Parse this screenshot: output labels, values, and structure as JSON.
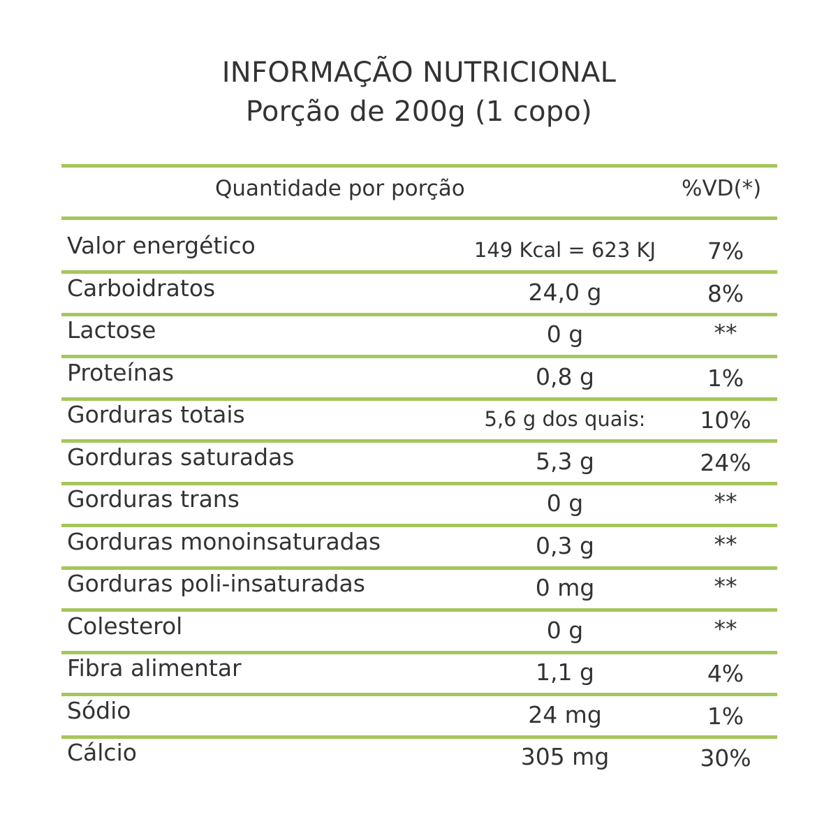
{
  "title": {
    "line1": "INFORMAÇÃO NUTRICIONAL",
    "line2": "Porção de 200g (1 copo)"
  },
  "header": {
    "quantity_label": "Quantidade por porção",
    "vd_label": "%VD(*)"
  },
  "colors": {
    "rule": "#a5c65a",
    "text": "#333333"
  },
  "rows": [
    {
      "name": "Valor energético",
      "amount": "149 Kcal = 623 KJ",
      "vd": "7%"
    },
    {
      "name": "Carboidratos",
      "amount": "24,0 g",
      "vd": "8%"
    },
    {
      "name": "Lactose",
      "amount": "0 g",
      "vd": "**"
    },
    {
      "name": "Proteínas",
      "amount": "0,8 g",
      "vd": "1%"
    },
    {
      "name": "Gorduras totais",
      "amount": "5,6 g dos quais:",
      "vd": "10%"
    },
    {
      "name": "Gorduras saturadas",
      "amount": "5,3 g",
      "vd": "24%"
    },
    {
      "name": "Gorduras trans",
      "amount": "0 g",
      "vd": "**"
    },
    {
      "name": "Gorduras monoinsaturadas",
      "amount": "0,3 g",
      "vd": "**"
    },
    {
      "name": "Gorduras poli-insaturadas",
      "amount": "0 mg",
      "vd": "**"
    },
    {
      "name": "Colesterol",
      "amount": "0 g",
      "vd": "**"
    },
    {
      "name": "Fibra alimentar",
      "amount": "1,1 g",
      "vd": "4%"
    },
    {
      "name": "Sódio",
      "amount": "24 mg",
      "vd": "1%"
    },
    {
      "name": "Cálcio",
      "amount": "305 mg",
      "vd": "30%"
    }
  ]
}
